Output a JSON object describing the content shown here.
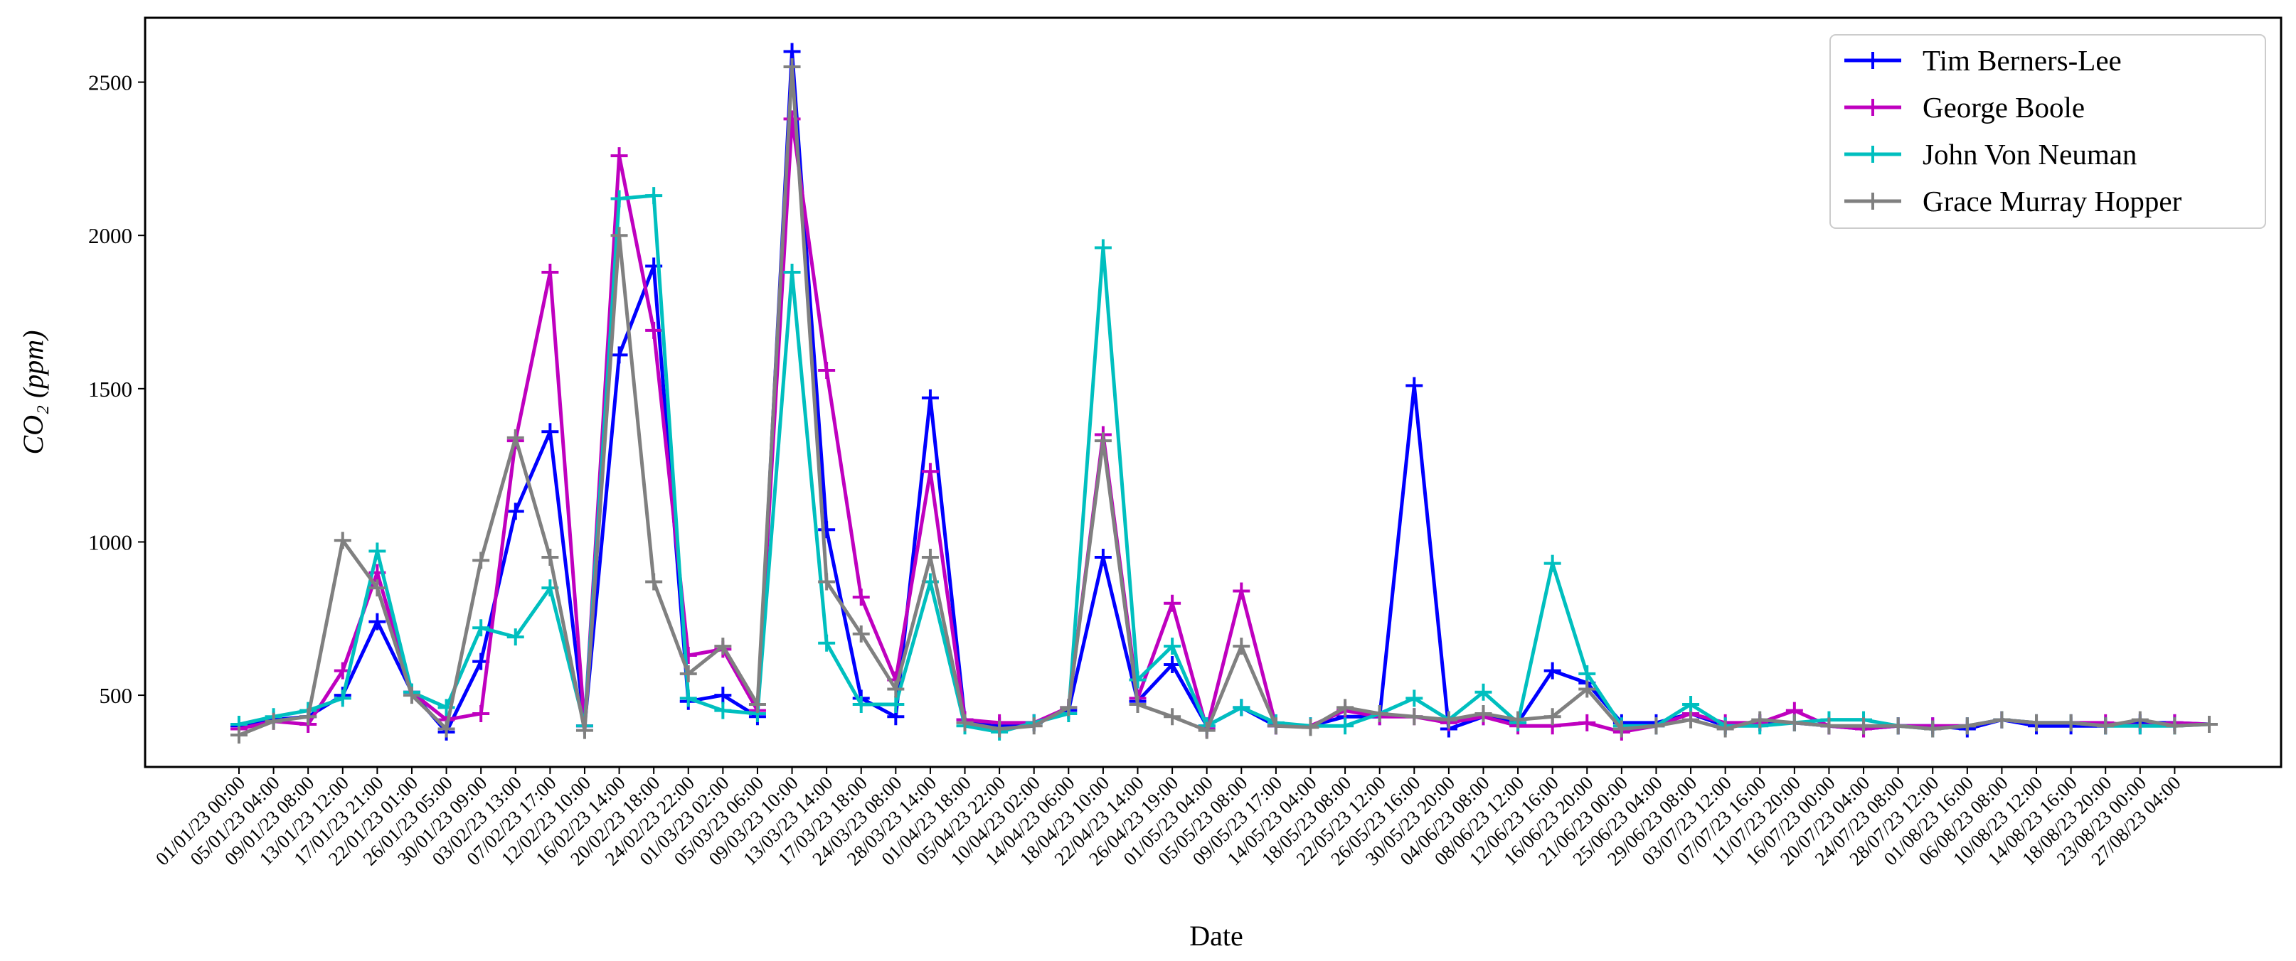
{
  "chart_data": {
    "type": "line",
    "ylabel": "CO₂ (ppm)",
    "xlabel": "Date",
    "categories": [
      "01/01/23 00:00",
      "05/01/23 04:00",
      "09/01/23 08:00",
      "13/01/23 12:00",
      "17/01/23 21:00",
      "22/01/23 01:00",
      "26/01/23 05:00",
      "30/01/23 09:00",
      "03/02/23 13:00",
      "07/02/23 17:00",
      "12/02/23 10:00",
      "16/02/23 14:00",
      "20/02/23 18:00",
      "24/02/23 22:00",
      "01/03/23 02:00",
      "05/03/23 06:00",
      "09/03/23 10:00",
      "13/03/23 14:00",
      "17/03/23 18:00",
      "24/03/23 08:00",
      "28/03/23 14:00",
      "01/04/23 18:00",
      "05/04/23 22:00",
      "10/04/23 02:00",
      "14/04/23 06:00",
      "18/04/23 10:00",
      "22/04/23 14:00",
      "26/04/23 19:00",
      "01/05/23 04:00",
      "05/05/23 08:00",
      "09/05/23 17:00",
      "14/05/23 04:00",
      "18/05/23 08:00",
      "22/05/23 12:00",
      "26/05/23 16:00",
      "30/05/23 20:00",
      "04/06/23 08:00",
      "08/06/23 12:00",
      "12/06/23 16:00",
      "16/06/23 20:00",
      "21/06/23 00:00",
      "25/06/23 04:00",
      "29/06/23 08:00",
      "03/07/23 12:00",
      "07/07/23 16:00",
      "11/07/23 20:00",
      "16/07/23 00:00",
      "20/07/23 04:00",
      "24/07/23 08:00",
      "28/07/23 12:00",
      "01/08/23 16:00",
      "06/08/23 08:00",
      "10/08/23 12:00",
      "14/08/23 16:00",
      "18/08/23 20:00",
      "23/08/23 00:00",
      "27/08/23 04:00",
      null
    ],
    "series": [
      {
        "name": "Tim Berners-Lee",
        "color": "#0000ff",
        "values": [
          400,
          420,
          430,
          500,
          740,
          510,
          380,
          610,
          1100,
          1360,
          400,
          1610,
          1900,
          480,
          500,
          430,
          2600,
          1040,
          490,
          430,
          1470,
          420,
          400,
          410,
          450,
          950,
          480,
          600,
          400,
          460,
          400,
          400,
          430,
          430,
          1510,
          390,
          430,
          410,
          580,
          540,
          410,
          410,
          440,
          400,
          410,
          410,
          400,
          390,
          400,
          400,
          390,
          420,
          400,
          400,
          400,
          410,
          410,
          405
        ]
      },
      {
        "name": "George Boole",
        "color": "#bf00bf",
        "values": [
          390,
          415,
          405,
          580,
          900,
          510,
          420,
          440,
          1330,
          1880,
          400,
          2260,
          1690,
          630,
          650,
          450,
          2380,
          1560,
          820,
          550,
          1230,
          420,
          410,
          410,
          460,
          1350,
          490,
          800,
          390,
          840,
          400,
          400,
          450,
          430,
          430,
          410,
          430,
          400,
          400,
          410,
          380,
          400,
          440,
          410,
          410,
          450,
          400,
          390,
          400,
          400,
          400,
          420,
          410,
          410,
          410,
          400,
          410,
          405
        ]
      },
      {
        "name": "John Von Neuman",
        "color": "#00bfbf",
        "values": [
          405,
          430,
          450,
          490,
          970,
          510,
          460,
          720,
          690,
          850,
          400,
          2120,
          2130,
          490,
          450,
          440,
          1880,
          670,
          470,
          470,
          870,
          400,
          380,
          410,
          440,
          1960,
          550,
          660,
          400,
          460,
          410,
          400,
          400,
          440,
          490,
          420,
          510,
          410,
          930,
          570,
          400,
          400,
          470,
          400,
          400,
          410,
          420,
          420,
          400,
          390,
          400,
          420,
          410,
          410,
          400,
          400,
          400,
          405
        ]
      },
      {
        "name": "Grace Murray Hopper",
        "color": "#808080",
        "values": [
          370,
          415,
          430,
          1005,
          850,
          500,
          390,
          940,
          1340,
          950,
          385,
          2000,
          870,
          570,
          660,
          470,
          2550,
          870,
          700,
          520,
          950,
          410,
          390,
          400,
          460,
          1330,
          470,
          430,
          385,
          660,
          400,
          395,
          460,
          440,
          430,
          420,
          440,
          420,
          430,
          520,
          390,
          400,
          420,
          390,
          420,
          410,
          400,
          400,
          400,
          390,
          400,
          420,
          410,
          410,
          400,
          420,
          400,
          405
        ]
      }
    ],
    "ylim": [
      266,
      2710
    ],
    "yticks": [
      500,
      1000,
      1500,
      2000,
      2500
    ],
    "legend": "upper right",
    "marker": "+"
  }
}
